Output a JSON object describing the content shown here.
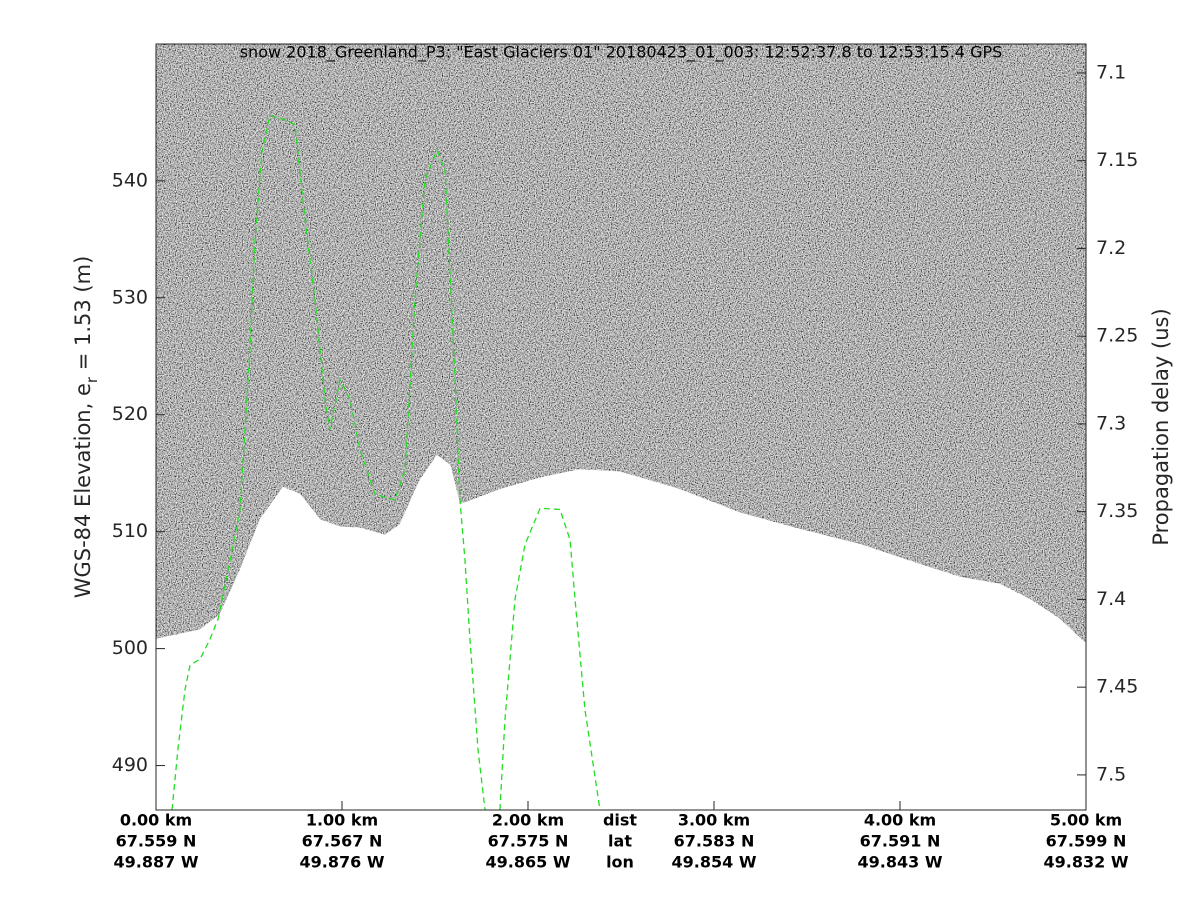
{
  "chart_data": {
    "type": "line",
    "title": "snow 2018_Greenland_P3: \"East Glaciers 01\"  20180423_01_003: 12:52:37.8 to 12:53:15.4 GPS",
    "ylabel": "WGS-84 Elevation, e",
    "ylabel_sub": "r",
    "ylabel_rest": " = 1.53 (m)",
    "y2label": "Propagation delay (us)",
    "xlim": [
      0,
      5
    ],
    "xticks": [
      {
        "value": 0,
        "label": "0.00 km"
      },
      {
        "value": 1,
        "label": "1.00 km"
      },
      {
        "value": 2,
        "label": "2.00 km"
      },
      {
        "value": 3,
        "label": "3.00 km"
      },
      {
        "value": 4,
        "label": "4.00 km"
      },
      {
        "value": 5,
        "label": "5.00 km"
      }
    ],
    "lat_labels": [
      "67.559 N",
      "67.567 N",
      "67.575 N",
      "67.583 N",
      "67.591 N",
      "67.599 N"
    ],
    "lon_labels": [
      "49.887 W",
      "49.876 W",
      "49.865 W",
      "49.854 W",
      "49.843 W",
      "49.832 W"
    ],
    "row_names": [
      "dist",
      "lat",
      "lon"
    ],
    "ylim": [
      486.2,
      551.7
    ],
    "yticks": [
      490,
      500,
      510,
      520,
      530,
      540
    ],
    "y2lim": [
      7.52,
      7.0835
    ],
    "y2ticks": [
      7.1,
      7.15,
      7.2,
      7.25,
      7.3,
      7.35,
      7.4,
      7.45,
      7.5
    ],
    "series": [
      {
        "kind": "area",
        "color": "#ffffff",
        "x": [
          0,
          0.237,
          0.344,
          0.452,
          0.559,
          0.683,
          0.774,
          0.882,
          0.989,
          1.097,
          1.231,
          1.312,
          1.419,
          1.511,
          1.581,
          1.634,
          1.849,
          2.065,
          2.28,
          2.495,
          2.817,
          3.14,
          3.462,
          3.785,
          4.108,
          4.323,
          4.538,
          4.699,
          4.86,
          5
        ],
        "values": [
          500.8,
          501.6,
          502.9,
          506.7,
          511.0,
          513.8,
          513.2,
          511.0,
          510.4,
          510.3,
          509.7,
          510.6,
          514.4,
          516.5,
          515.7,
          512.3,
          513.6,
          514.6,
          515.3,
          515.1,
          513.6,
          511.6,
          510.2,
          508.9,
          507.2,
          506.1,
          505.5,
          504.2,
          502.5,
          500.4
        ]
      },
      {
        "kind": "line",
        "dash": true,
        "color": "#22dd22",
        "x": [
          0.086,
          0.118,
          0.156,
          0.183,
          0.237,
          0.29,
          0.333,
          0.398,
          0.452,
          0.505,
          0.532,
          0.57,
          0.613,
          0.694,
          0.747,
          0.801,
          0.855,
          0.909,
          0.935,
          0.989,
          1.043,
          1.097,
          1.177,
          1.285,
          1.339,
          1.392,
          1.446,
          1.511,
          1.554,
          1.608,
          1.634,
          1.661,
          1.688,
          1.731,
          1.769,
          null,
          1.849,
          1.876,
          1.93,
          1.984,
          2.065,
          2.172,
          2.226,
          2.253,
          2.306,
          2.387
        ],
        "values": [
          486.2,
          491.4,
          496.5,
          498.6,
          499.1,
          500.8,
          502.5,
          507.6,
          511.9,
          525.6,
          534.9,
          542.6,
          545.6,
          545.2,
          544.8,
          536.7,
          529.8,
          521.3,
          518.7,
          523.0,
          521.3,
          517.0,
          513.2,
          512.7,
          515.3,
          529.8,
          540.1,
          542.6,
          540.9,
          523.0,
          512.7,
          507.6,
          500.8,
          491.4,
          486.2,
          null,
          486.2,
          493.9,
          504.2,
          508.9,
          512.0,
          511.9,
          509.3,
          504.2,
          494.8,
          486.2
        ]
      }
    ]
  }
}
